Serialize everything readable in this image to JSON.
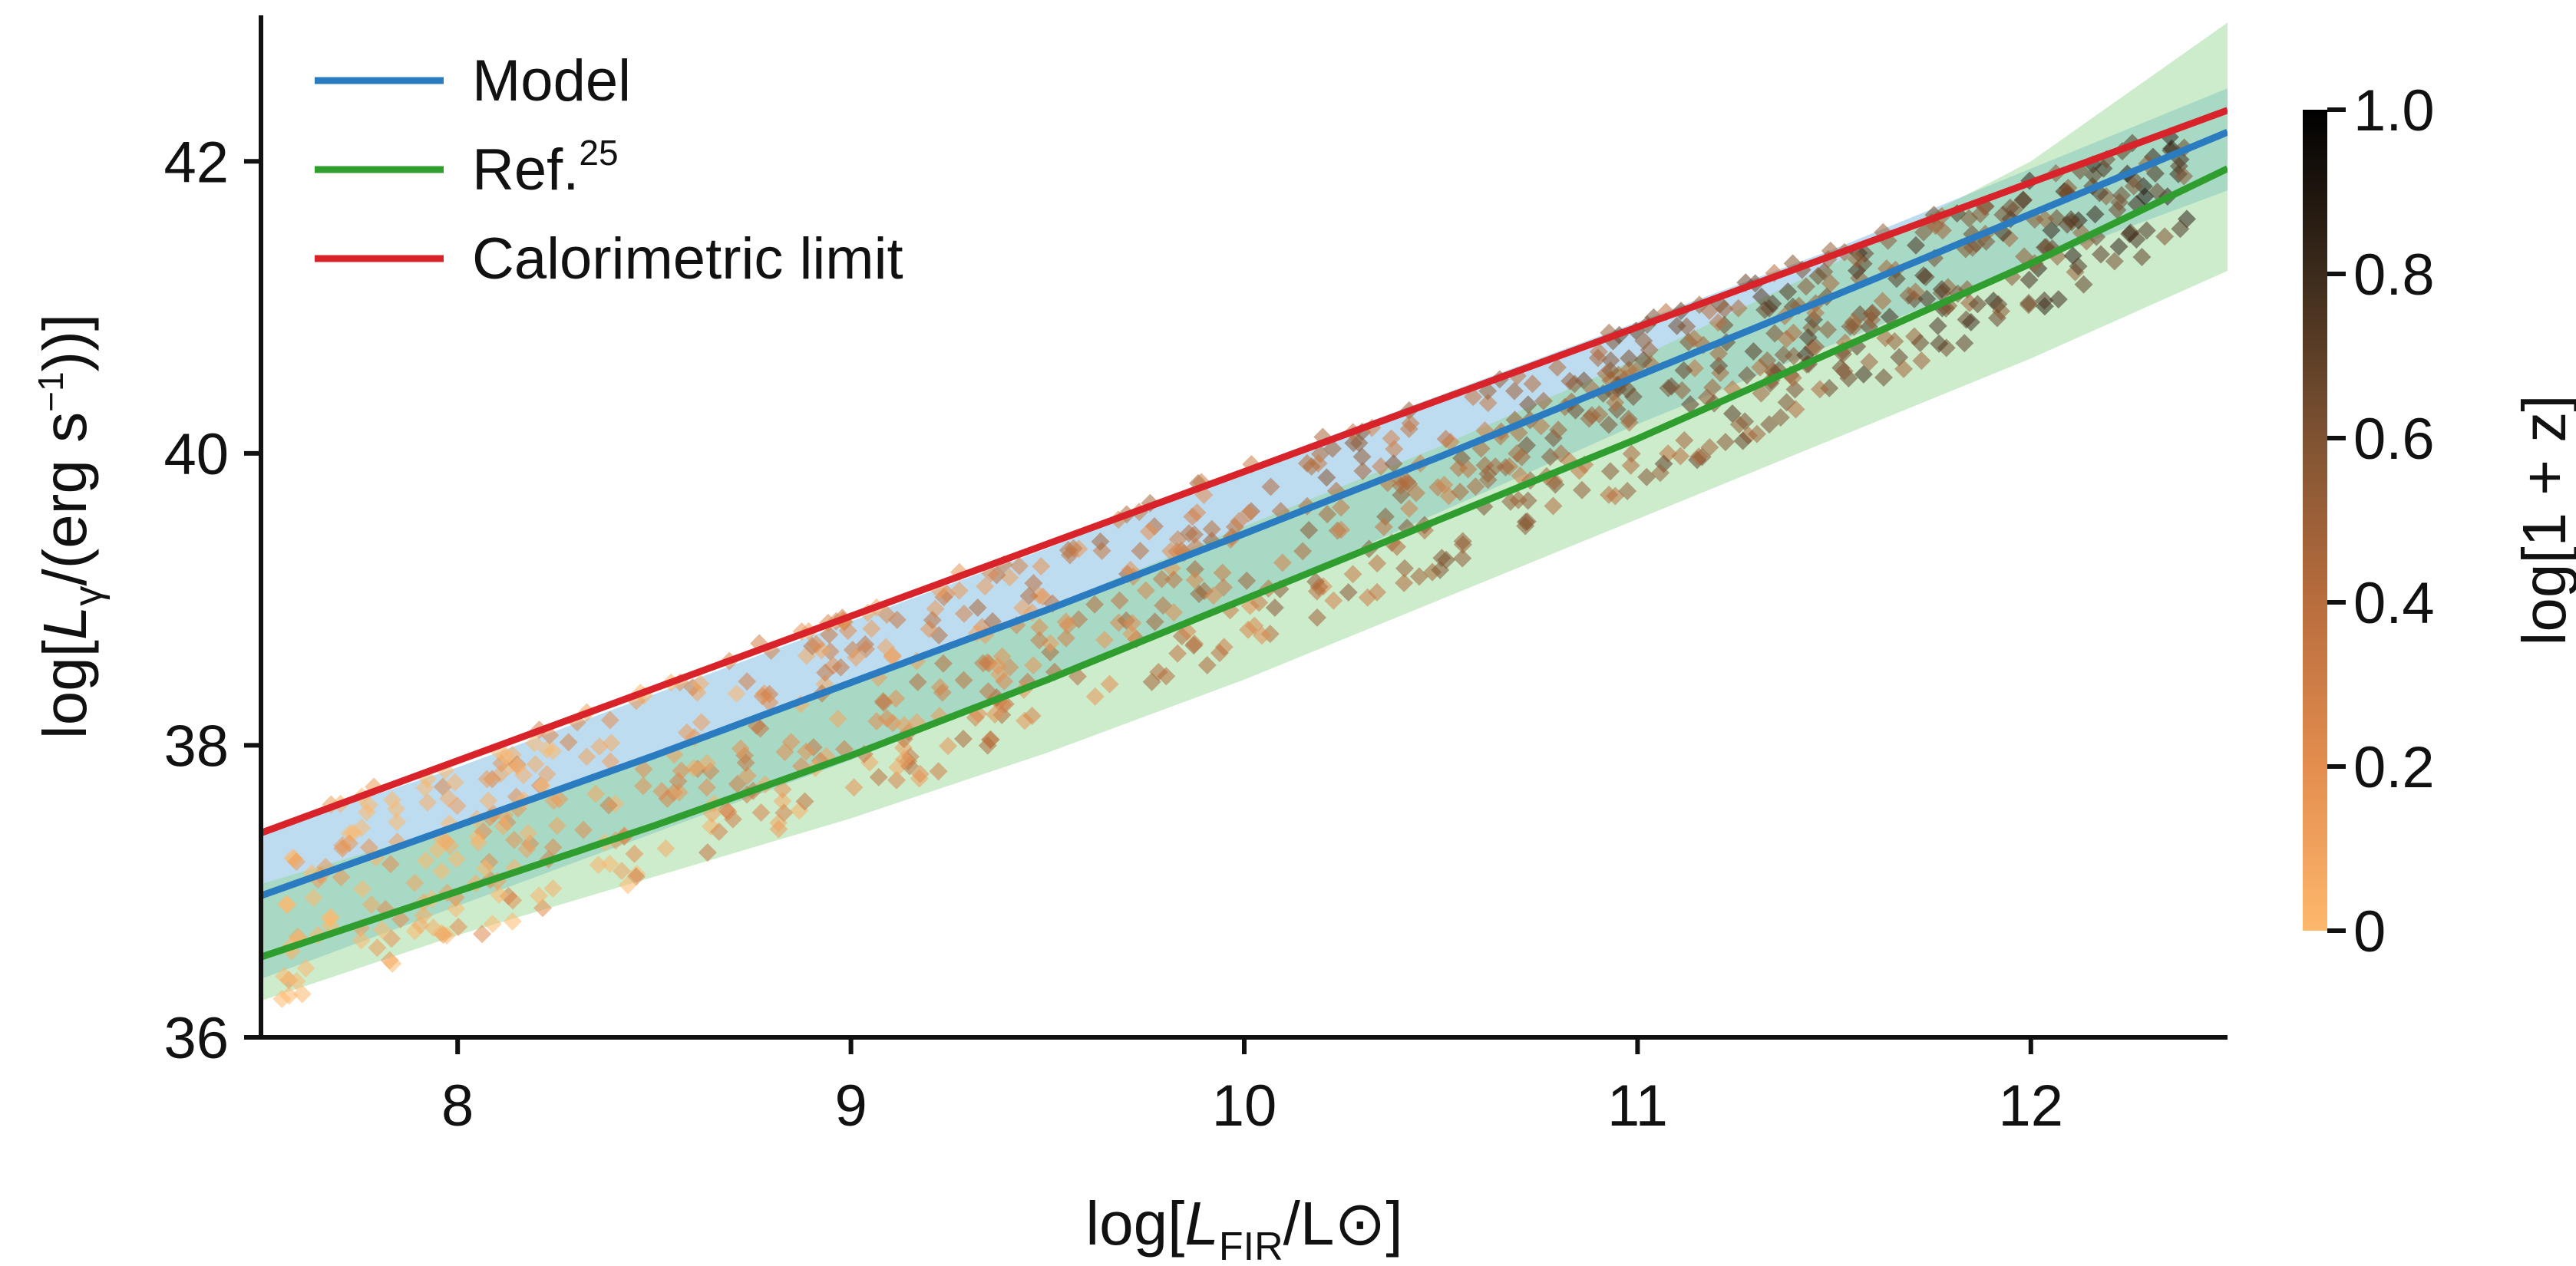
{
  "chart_data": {
    "type": "scatter",
    "xlabel": {
      "prefix": "log[",
      "var": "L",
      "sub": "FIR",
      "suffix": "/L⊙]"
    },
    "ylabel": {
      "prefix": "log[",
      "var": "L",
      "sub": "γ",
      "mid": "/(erg s",
      "sup": "−1",
      "suffix": "))]"
    },
    "xlim": [
      7.5,
      12.5
    ],
    "ylim": [
      36,
      43
    ],
    "x_ticks": [
      "8",
      "9",
      "10",
      "11",
      "12"
    ],
    "y_ticks": [
      "36",
      "38",
      "40",
      "42"
    ],
    "grid": false,
    "legend_position": "top-left",
    "colorbar": {
      "label": "log[1 + z]",
      "range": [
        0,
        1.0
      ],
      "ticks": [
        "0",
        "0.2",
        "0.4",
        "0.6",
        "0.8",
        "1.0"
      ],
      "colormap": [
        "#fdb86c",
        "#e48d4f",
        "#b86d3d",
        "#7f5332",
        "#3c2b1c",
        "#000000"
      ]
    },
    "series": [
      {
        "name": "Model",
        "legend_label": "Model",
        "color": "#2b7bc0",
        "x": [
          7.5,
          8,
          8.5,
          9,
          9.5,
          10,
          10.5,
          11,
          11.5,
          12,
          12.5
        ],
        "y": [
          36.97,
          37.45,
          37.93,
          38.43,
          38.93,
          39.45,
          39.98,
          40.53,
          41.08,
          41.64,
          42.2
        ],
        "band_lo": [
          36.4,
          36.9,
          37.4,
          37.9,
          38.45,
          39.0,
          39.6,
          40.2,
          40.75,
          41.3,
          41.8
        ],
        "band_hi": [
          37.4,
          37.85,
          38.35,
          38.85,
          39.35,
          39.9,
          40.4,
          40.9,
          41.4,
          41.95,
          42.5
        ],
        "band_color": "#6fb1de"
      },
      {
        "name": "Ref.25",
        "legend_label": "Ref.",
        "legend_sup": "25",
        "color": "#2f9e2f",
        "x": [
          7.5,
          8,
          8.5,
          9,
          9.5,
          10,
          10.5,
          11,
          11.5,
          12,
          12.5
        ],
        "y": [
          36.55,
          37.0,
          37.45,
          37.93,
          38.45,
          39.0,
          39.55,
          40.1,
          40.7,
          41.3,
          41.95
        ],
        "band_lo": [
          36.25,
          36.7,
          37.1,
          37.5,
          37.95,
          38.45,
          39.0,
          39.55,
          40.1,
          40.65,
          41.25
        ],
        "band_hi": [
          37.05,
          37.45,
          37.95,
          38.45,
          38.95,
          39.5,
          40.05,
          40.65,
          41.3,
          42.0,
          42.95
        ],
        "band_color": "#8fd48f"
      },
      {
        "name": "Calorimetric limit",
        "legend_label": "Calorimetric limit",
        "color": "#d8232a",
        "x": [
          7.5,
          12.5
        ],
        "y": [
          37.4,
          42.35
        ]
      }
    ],
    "scatter_summary": "Diamond-marker galaxy sample colored by log[1 + z], spanning x 7.5–12.4 and lying mostly between the Ref. and Calorimetric curves"
  }
}
